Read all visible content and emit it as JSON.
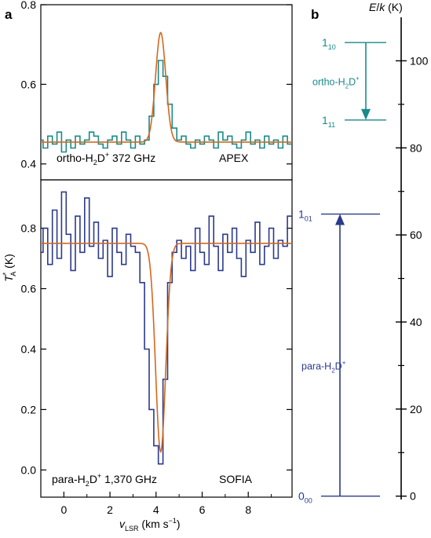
{
  "panel_a": {
    "label": "a"
  },
  "panel_b": {
    "label": "b"
  },
  "chart_data": [
    {
      "type": "line",
      "panel": "a-top",
      "annotation": "ortho-H2D+ 372 GHz",
      "annotation_parts": {
        "species": "ortho-H",
        "sub": "2",
        "d": "D",
        "sup": "+",
        "freq": " 372 GHz"
      },
      "telescope": "APEX",
      "xlim": [
        -1,
        9.9
      ],
      "ylim": [
        0.36,
        0.8
      ],
      "y_ticks": [
        0.4,
        0.6,
        0.8
      ],
      "y_tick_labels": [
        "0.4",
        "0.6",
        "0.8"
      ],
      "colors": {
        "spectrum": "#1a8a8a",
        "fit": "#d2691e"
      },
      "series": [
        {
          "kind": "step",
          "color": "#1a8a8a",
          "x": [
            -1.0,
            -0.8,
            -0.6,
            -0.4,
            -0.2,
            0.0,
            0.2,
            0.4,
            0.6,
            0.8,
            1.0,
            1.2,
            1.4,
            1.6,
            1.8,
            2.0,
            2.2,
            2.4,
            2.6,
            2.8,
            3.0,
            3.2,
            3.4,
            3.6,
            3.8,
            4.0,
            4.2,
            4.4,
            4.6,
            4.8,
            5.0,
            5.2,
            5.4,
            5.6,
            5.8,
            6.0,
            6.2,
            6.4,
            6.6,
            6.8,
            7.0,
            7.2,
            7.4,
            7.6,
            7.8,
            8.0,
            8.2,
            8.4,
            8.6,
            8.8,
            9.0,
            9.2,
            9.4,
            9.6,
            9.8
          ],
          "y": [
            0.46,
            0.44,
            0.47,
            0.45,
            0.48,
            0.43,
            0.46,
            0.44,
            0.47,
            0.45,
            0.46,
            0.48,
            0.47,
            0.45,
            0.44,
            0.46,
            0.47,
            0.45,
            0.48,
            0.46,
            0.44,
            0.47,
            0.45,
            0.46,
            0.52,
            0.6,
            0.66,
            0.62,
            0.55,
            0.49,
            0.46,
            0.47,
            0.45,
            0.44,
            0.46,
            0.45,
            0.47,
            0.46,
            0.44,
            0.48,
            0.46,
            0.47,
            0.45,
            0.44,
            0.46,
            0.48,
            0.45,
            0.46,
            0.44,
            0.47,
            0.45,
            0.46,
            0.44,
            0.47,
            0.45
          ]
        },
        {
          "kind": "gaussian",
          "color": "#d2691e",
          "baseline": 0.455,
          "amplitude": 0.275,
          "center": 4.2,
          "sigma": 0.22
        }
      ]
    },
    {
      "type": "line",
      "panel": "a-bottom",
      "annotation": "para-H2D+ 1,370 GHz",
      "annotation_parts": {
        "species": "para-H",
        "sub": "2",
        "d": "D",
        "sup": "+",
        "freq": " 1,370 GHz"
      },
      "telescope": "SOFIA",
      "xlabel": "vLSR (km s-1)",
      "xlabel_parts": {
        "v": "v",
        "sub": "LSR",
        "units": " (km s",
        "exp": "−1",
        "close": ")"
      },
      "ylabel": "T*A (K)",
      "ylabel_parts": {
        "t": "T",
        "sup": "*",
        "sub": "A",
        "units": " (K)"
      },
      "xlim": [
        -1,
        9.9
      ],
      "ylim": [
        -0.09,
        0.96
      ],
      "x_ticks": [
        0,
        2,
        4,
        6,
        8
      ],
      "x_tick_labels": [
        "0",
        "2",
        "4",
        "6",
        "8"
      ],
      "y_ticks": [
        0.0,
        0.2,
        0.4,
        0.6,
        0.8
      ],
      "y_tick_labels": [
        "0.0",
        "0.2",
        "0.4",
        "0.6",
        "0.8"
      ],
      "colors": {
        "spectrum": "#2b3a8c",
        "fit": "#d2691e"
      },
      "series": [
        {
          "kind": "step",
          "color": "#2b3a8c",
          "x": [
            -1.0,
            -0.8,
            -0.6,
            -0.4,
            -0.2,
            0.0,
            0.2,
            0.4,
            0.6,
            0.8,
            1.0,
            1.2,
            1.4,
            1.6,
            1.8,
            2.0,
            2.2,
            2.4,
            2.6,
            2.8,
            3.0,
            3.2,
            3.4,
            3.6,
            3.8,
            4.0,
            4.2,
            4.4,
            4.6,
            4.8,
            5.0,
            5.2,
            5.4,
            5.6,
            5.8,
            6.0,
            6.2,
            6.4,
            6.6,
            6.8,
            7.0,
            7.2,
            7.4,
            7.6,
            7.8,
            8.0,
            8.2,
            8.4,
            8.6,
            8.8,
            9.0,
            9.2,
            9.4,
            9.6,
            9.8
          ],
          "y": [
            0.72,
            0.8,
            0.68,
            0.86,
            0.7,
            0.92,
            0.78,
            0.66,
            0.84,
            0.72,
            0.9,
            0.74,
            0.82,
            0.7,
            0.76,
            0.64,
            0.8,
            0.72,
            0.68,
            0.78,
            0.74,
            0.72,
            0.62,
            0.4,
            0.2,
            0.08,
            0.02,
            0.3,
            0.62,
            0.72,
            0.76,
            0.7,
            0.74,
            0.66,
            0.8,
            0.72,
            0.68,
            0.84,
            0.74,
            0.66,
            0.78,
            0.72,
            0.8,
            0.7,
            0.64,
            0.76,
            0.72,
            0.82,
            0.68,
            0.74,
            0.8,
            0.7,
            0.76,
            0.74,
            0.84
          ]
        },
        {
          "kind": "gaussian",
          "color": "#d2691e",
          "baseline": 0.75,
          "amplitude": -0.69,
          "center": 4.2,
          "sigma": 0.22
        }
      ]
    },
    {
      "type": "diagram",
      "panel": "b",
      "ylabel": "E/k (K)",
      "ylim": [
        -1.5,
        110
      ],
      "y_ticks": [
        0,
        20,
        40,
        60,
        80,
        100
      ],
      "y_tick_labels": [
        "0",
        "20",
        "40",
        "60",
        "80",
        "100"
      ],
      "levels": [
        {
          "label": "1",
          "sub": "10",
          "energy": 104.2,
          "color": "#1a8a8a"
        },
        {
          "label": "1",
          "sub": "11",
          "energy": 86.4,
          "color": "#1a8a8a"
        },
        {
          "label": "1",
          "sub": "01",
          "energy": 64.8,
          "color": "#2b3a8c"
        },
        {
          "label": "0",
          "sub": "00",
          "energy": 0.0,
          "color": "#2b3a8c"
        }
      ],
      "transitions": [
        {
          "name": "ortho-H2D+",
          "parts": {
            "species": "ortho-H",
            "sub": "2",
            "d": "D",
            "sup": "+"
          },
          "from": 104.2,
          "to": 86.4,
          "color": "#1a8a8a"
        },
        {
          "name": "para-H2D+",
          "parts": {
            "species": "para-H",
            "sub": "2",
            "d": "D",
            "sup": "+"
          },
          "from": 0.0,
          "to": 64.8,
          "color": "#2b3a8c"
        }
      ]
    }
  ]
}
